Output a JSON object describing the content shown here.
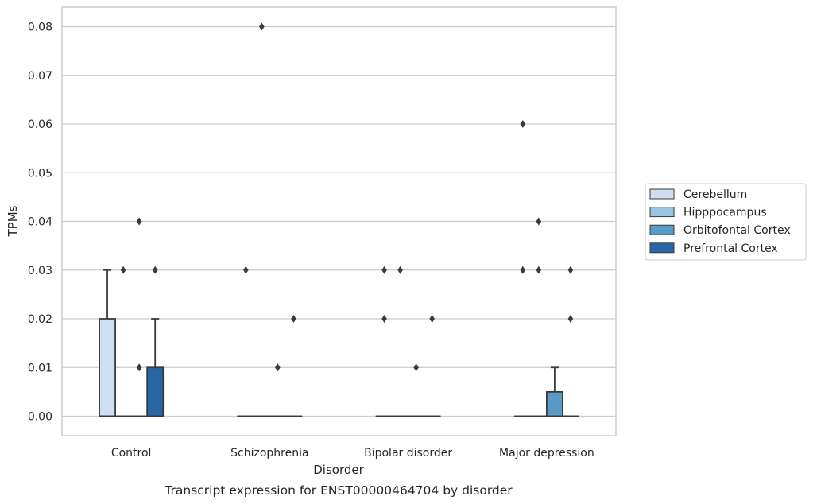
{
  "chart_data": {
    "type": "box",
    "title": "",
    "caption": "Transcript expression for ENST00000464704 by disorder",
    "xlabel": "Disorder",
    "ylabel": "TPMs",
    "ylim": [
      -0.004,
      0.084
    ],
    "yticks": [
      "0.00",
      "0.01",
      "0.02",
      "0.03",
      "0.04",
      "0.05",
      "0.06",
      "0.07",
      "0.08"
    ],
    "categories": [
      "Control",
      "Schizophrenia",
      "Bipolar disorder",
      "Major depression"
    ],
    "grid": "horizontal",
    "legend_position": "right",
    "series": [
      {
        "name": "Cerebellum",
        "color": "#cfdef0",
        "boxes": [
          {
            "q1": 0,
            "median": 0,
            "q3": 0.02,
            "whislo": 0,
            "whishi": 0.03,
            "fliers": []
          },
          {
            "q1": 0,
            "median": 0,
            "q3": 0,
            "whislo": 0,
            "whishi": 0,
            "fliers": [
              0.03
            ]
          },
          {
            "q1": 0,
            "median": 0,
            "q3": 0,
            "whislo": 0,
            "whishi": 0,
            "fliers": [
              0.02,
              0.03
            ]
          },
          {
            "q1": 0,
            "median": 0,
            "q3": 0,
            "whislo": 0,
            "whishi": 0,
            "fliers": [
              0.03,
              0.06
            ]
          }
        ]
      },
      {
        "name": "Hipppocampus",
        "color": "#9ac3de",
        "boxes": [
          {
            "q1": 0,
            "median": 0,
            "q3": 0,
            "whislo": 0,
            "whishi": 0,
            "fliers": [
              0.03
            ]
          },
          {
            "q1": 0,
            "median": 0,
            "q3": 0,
            "whislo": 0,
            "whishi": 0,
            "fliers": [
              0.08
            ]
          },
          {
            "q1": 0,
            "median": 0,
            "q3": 0,
            "whislo": 0,
            "whishi": 0,
            "fliers": [
              0.03
            ]
          },
          {
            "q1": 0,
            "median": 0,
            "q3": 0,
            "whislo": 0,
            "whishi": 0,
            "fliers": [
              0.03,
              0.04
            ]
          }
        ]
      },
      {
        "name": "Orbitofontal Cortex",
        "color": "#5a9ac8",
        "boxes": [
          {
            "q1": 0,
            "median": 0,
            "q3": 0,
            "whislo": 0,
            "whishi": 0,
            "fliers": [
              0.01,
              0.04
            ]
          },
          {
            "q1": 0,
            "median": 0,
            "q3": 0,
            "whislo": 0,
            "whishi": 0,
            "fliers": [
              0.01
            ]
          },
          {
            "q1": 0,
            "median": 0,
            "q3": 0,
            "whislo": 0,
            "whishi": 0,
            "fliers": [
              0.01
            ]
          },
          {
            "q1": 0,
            "median": 0,
            "q3": 0.005,
            "whislo": 0,
            "whishi": 0.01,
            "fliers": []
          }
        ]
      },
      {
        "name": "Prefrontal Cortex",
        "color": "#2867a6",
        "boxes": [
          {
            "q1": 0,
            "median": 0,
            "q3": 0.01,
            "whislo": 0,
            "whishi": 0.02,
            "fliers": [
              0.03
            ]
          },
          {
            "q1": 0,
            "median": 0,
            "q3": 0,
            "whislo": 0,
            "whishi": 0,
            "fliers": [
              0.02
            ]
          },
          {
            "q1": 0,
            "median": 0,
            "q3": 0,
            "whislo": 0,
            "whishi": 0,
            "fliers": [
              0.02
            ]
          },
          {
            "q1": 0,
            "median": 0,
            "q3": 0,
            "whislo": 0,
            "whishi": 0,
            "fliers": [
              0.02,
              0.03
            ]
          }
        ]
      }
    ]
  }
}
